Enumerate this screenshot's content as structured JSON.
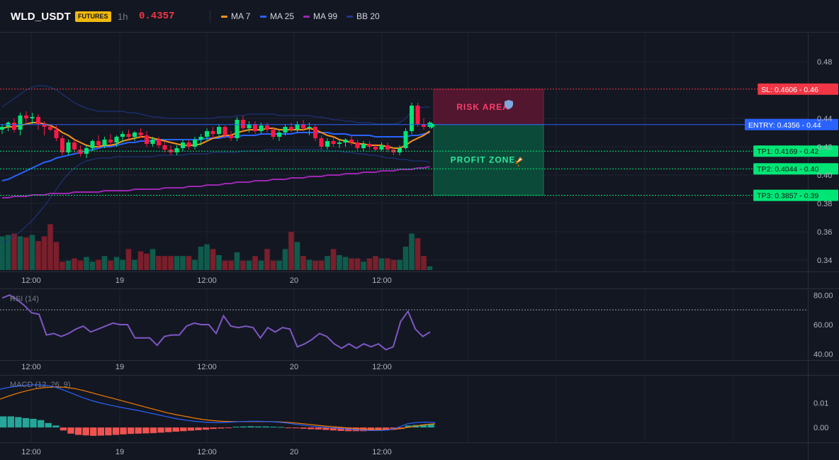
{
  "header": {
    "symbol": "WLD_USDT",
    "badge": "FUTURES",
    "timeframe": "1h",
    "price": "0.4357",
    "legend": [
      {
        "label": "MA 7",
        "color": "#f7931a"
      },
      {
        "label": "MA 25",
        "color": "#2962ff"
      },
      {
        "label": "MA 99",
        "color": "#9c27b0"
      },
      {
        "label": "BB 20",
        "color": "#1e3a8a"
      }
    ]
  },
  "colors": {
    "up": "#089981",
    "down": "#f23645",
    "candle_up": "#00e676",
    "candle_down": "#ff1744",
    "ma7": "#f7931a",
    "ma25": "#2962ff",
    "ma99": "#9c27b0",
    "bb": "#1e3a8a",
    "rsi": "#7e57c2",
    "macd": "#2962ff",
    "signal": "#f57c00"
  },
  "chart_data": [
    {
      "type": "candlestick",
      "name": "price",
      "ylim": [
        0.332,
        0.5
      ],
      "y_ticks": [
        "0.48",
        "0.44",
        "0.42",
        "0.40",
        "0.38",
        "0.36",
        "0.34"
      ],
      "x_ticks": [
        "12:00",
        "19",
        "12:00",
        "20",
        "12:00"
      ],
      "candles": [
        [
          0.432,
          0.436,
          0.429,
          0.434
        ],
        [
          0.434,
          0.438,
          0.431,
          0.437
        ],
        [
          0.437,
          0.44,
          0.43,
          0.432
        ],
        [
          0.432,
          0.444,
          0.428,
          0.442
        ],
        [
          0.442,
          0.445,
          0.437,
          0.44
        ],
        [
          0.44,
          0.444,
          0.436,
          0.441
        ],
        [
          0.441,
          0.443,
          0.432,
          0.436
        ],
        [
          0.436,
          0.438,
          0.428,
          0.434
        ],
        [
          0.434,
          0.436,
          0.431,
          0.432
        ],
        [
          0.432,
          0.435,
          0.424,
          0.426
        ],
        [
          0.426,
          0.428,
          0.414,
          0.416
        ],
        [
          0.416,
          0.425,
          0.414,
          0.423
        ],
        [
          0.423,
          0.425,
          0.416,
          0.418
        ],
        [
          0.418,
          0.421,
          0.413,
          0.415
        ],
        [
          0.415,
          0.421,
          0.412,
          0.419
        ],
        [
          0.419,
          0.425,
          0.417,
          0.424
        ],
        [
          0.424,
          0.428,
          0.419,
          0.421
        ],
        [
          0.421,
          0.427,
          0.419,
          0.425
        ],
        [
          0.425,
          0.429,
          0.421,
          0.423
        ],
        [
          0.423,
          0.428,
          0.42,
          0.427
        ],
        [
          0.427,
          0.431,
          0.423,
          0.429
        ],
        [
          0.429,
          0.432,
          0.425,
          0.427
        ],
        [
          0.427,
          0.431,
          0.424,
          0.43
        ],
        [
          0.43,
          0.433,
          0.426,
          0.428
        ],
        [
          0.428,
          0.431,
          0.42,
          0.422
        ],
        [
          0.422,
          0.427,
          0.42,
          0.425
        ],
        [
          0.425,
          0.427,
          0.419,
          0.421
        ],
        [
          0.421,
          0.423,
          0.416,
          0.418
        ],
        [
          0.418,
          0.421,
          0.414,
          0.416
        ],
        [
          0.416,
          0.421,
          0.414,
          0.419
        ],
        [
          0.419,
          0.425,
          0.417,
          0.423
        ],
        [
          0.423,
          0.425,
          0.418,
          0.42
        ],
        [
          0.42,
          0.427,
          0.418,
          0.425
        ],
        [
          0.425,
          0.429,
          0.421,
          0.427
        ],
        [
          0.427,
          0.433,
          0.424,
          0.431
        ],
        [
          0.431,
          0.434,
          0.426,
          0.429
        ],
        [
          0.429,
          0.436,
          0.427,
          0.434
        ],
        [
          0.434,
          0.435,
          0.426,
          0.428
        ],
        [
          0.428,
          0.431,
          0.424,
          0.426
        ],
        [
          0.426,
          0.441,
          0.424,
          0.439
        ],
        [
          0.439,
          0.442,
          0.431,
          0.433
        ],
        [
          0.433,
          0.438,
          0.43,
          0.436
        ],
        [
          0.436,
          0.438,
          0.429,
          0.431
        ],
        [
          0.431,
          0.437,
          0.429,
          0.435
        ],
        [
          0.435,
          0.437,
          0.43,
          0.432
        ],
        [
          0.432,
          0.434,
          0.425,
          0.427
        ],
        [
          0.427,
          0.432,
          0.424,
          0.43
        ],
        [
          0.43,
          0.436,
          0.428,
          0.434
        ],
        [
          0.434,
          0.437,
          0.43,
          0.432
        ],
        [
          0.432,
          0.438,
          0.43,
          0.436
        ],
        [
          0.436,
          0.439,
          0.431,
          0.433
        ],
        [
          0.433,
          0.437,
          0.428,
          0.434
        ],
        [
          0.434,
          0.436,
          0.424,
          0.426
        ],
        [
          0.426,
          0.428,
          0.418,
          0.42
        ],
        [
          0.42,
          0.426,
          0.418,
          0.424
        ],
        [
          0.424,
          0.427,
          0.42,
          0.422
        ],
        [
          0.422,
          0.425,
          0.419,
          0.423
        ],
        [
          0.423,
          0.426,
          0.42,
          0.425
        ],
        [
          0.425,
          0.428,
          0.421,
          0.423
        ],
        [
          0.423,
          0.425,
          0.417,
          0.419
        ],
        [
          0.419,
          0.424,
          0.417,
          0.422
        ],
        [
          0.422,
          0.424,
          0.418,
          0.42
        ],
        [
          0.42,
          0.422,
          0.417,
          0.418
        ],
        [
          0.418,
          0.423,
          0.417,
          0.421
        ],
        [
          0.421,
          0.423,
          0.416,
          0.418
        ],
        [
          0.418,
          0.42,
          0.414,
          0.416
        ],
        [
          0.416,
          0.421,
          0.414,
          0.419
        ],
        [
          0.419,
          0.433,
          0.418,
          0.431
        ],
        [
          0.431,
          0.451,
          0.429,
          0.449
        ],
        [
          0.449,
          0.451,
          0.434,
          0.436
        ],
        [
          0.436,
          0.44,
          0.432,
          0.434
        ],
        [
          0.434,
          0.438,
          0.433,
          0.437
        ]
      ],
      "ma7": [
        0.433,
        0.434,
        0.434,
        0.435,
        0.436,
        0.437,
        0.437,
        0.436,
        0.435,
        0.433,
        0.43,
        0.428,
        0.425,
        0.423,
        0.421,
        0.42,
        0.42,
        0.421,
        0.421,
        0.422,
        0.424,
        0.425,
        0.426,
        0.427,
        0.427,
        0.426,
        0.425,
        0.424,
        0.423,
        0.422,
        0.421,
        0.421,
        0.421,
        0.422,
        0.424,
        0.426,
        0.427,
        0.428,
        0.428,
        0.43,
        0.431,
        0.432,
        0.432,
        0.432,
        0.433,
        0.433,
        0.432,
        0.432,
        0.432,
        0.432,
        0.432,
        0.433,
        0.432,
        0.43,
        0.428,
        0.427,
        0.425,
        0.424,
        0.423,
        0.422,
        0.422,
        0.421,
        0.421,
        0.421,
        0.42,
        0.419,
        0.419,
        0.421,
        0.424,
        0.426,
        0.428,
        0.431
      ],
      "ma25": [
        0.396,
        0.397,
        0.399,
        0.401,
        0.403,
        0.405,
        0.407,
        0.409,
        0.41,
        0.412,
        0.413,
        0.414,
        0.415,
        0.416,
        0.417,
        0.418,
        0.419,
        0.42,
        0.42,
        0.421,
        0.422,
        0.423,
        0.423,
        0.424,
        0.424,
        0.424,
        0.425,
        0.425,
        0.425,
        0.425,
        0.425,
        0.425,
        0.425,
        0.425,
        0.426,
        0.426,
        0.426,
        0.427,
        0.427,
        0.427,
        0.428,
        0.428,
        0.428,
        0.429,
        0.429,
        0.429,
        0.429,
        0.429,
        0.429,
        0.43,
        0.43,
        0.43,
        0.43,
        0.43,
        0.43,
        0.429,
        0.429,
        0.429,
        0.428,
        0.428,
        0.428,
        0.428,
        0.427,
        0.427,
        0.427,
        0.427,
        0.427,
        0.427,
        0.428,
        0.428,
        0.429,
        0.43
      ],
      "ma99": [
        0.384,
        0.384,
        0.385,
        0.385,
        0.385,
        0.386,
        0.386,
        0.386,
        0.387,
        0.387,
        0.387,
        0.387,
        0.388,
        0.388,
        0.388,
        0.388,
        0.388,
        0.389,
        0.389,
        0.389,
        0.389,
        0.389,
        0.39,
        0.39,
        0.39,
        0.39,
        0.39,
        0.391,
        0.391,
        0.391,
        0.391,
        0.392,
        0.392,
        0.392,
        0.393,
        0.393,
        0.393,
        0.394,
        0.394,
        0.395,
        0.395,
        0.395,
        0.396,
        0.396,
        0.396,
        0.397,
        0.397,
        0.397,
        0.398,
        0.398,
        0.398,
        0.399,
        0.399,
        0.399,
        0.4,
        0.4,
        0.4,
        0.401,
        0.401,
        0.401,
        0.402,
        0.402,
        0.402,
        0.403,
        0.403,
        0.403,
        0.404,
        0.404,
        0.404,
        0.405,
        0.405,
        0.406
      ],
      "bb_upper": [
        0.448,
        0.451,
        0.454,
        0.457,
        0.46,
        0.462,
        0.463,
        0.463,
        0.462,
        0.46,
        0.457,
        0.454,
        0.451,
        0.449,
        0.447,
        0.446,
        0.445,
        0.445,
        0.445,
        0.445,
        0.445,
        0.444,
        0.444,
        0.443,
        0.442,
        0.441,
        0.441,
        0.44,
        0.44,
        0.44,
        0.44,
        0.44,
        0.44,
        0.44,
        0.44,
        0.44,
        0.441,
        0.441,
        0.441,
        0.442,
        0.442,
        0.443,
        0.443,
        0.443,
        0.443,
        0.443,
        0.442,
        0.442,
        0.442,
        0.442,
        0.442,
        0.442,
        0.441,
        0.441,
        0.44,
        0.439,
        0.439,
        0.438,
        0.438,
        0.437,
        0.437,
        0.437,
        0.436,
        0.436,
        0.436,
        0.436,
        0.437,
        0.44,
        0.445,
        0.447,
        0.448,
        0.448
      ],
      "bb_lower": [
        0.352,
        0.354,
        0.357,
        0.36,
        0.364,
        0.368,
        0.373,
        0.378,
        0.384,
        0.39,
        0.396,
        0.401,
        0.405,
        0.408,
        0.41,
        0.411,
        0.412,
        0.412,
        0.412,
        0.413,
        0.413,
        0.413,
        0.413,
        0.413,
        0.413,
        0.413,
        0.414,
        0.414,
        0.414,
        0.414,
        0.414,
        0.415,
        0.415,
        0.415,
        0.415,
        0.416,
        0.416,
        0.416,
        0.416,
        0.416,
        0.417,
        0.417,
        0.417,
        0.417,
        0.418,
        0.418,
        0.418,
        0.418,
        0.418,
        0.418,
        0.418,
        0.418,
        0.418,
        0.418,
        0.417,
        0.417,
        0.417,
        0.416,
        0.416,
        0.415,
        0.415,
        0.414,
        0.414,
        0.413,
        0.412,
        0.412,
        0.411,
        0.411,
        0.41,
        0.41,
        0.41,
        0.409
      ],
      "volume": [
        0.72,
        0.75,
        0.78,
        0.72,
        0.7,
        0.75,
        0.62,
        0.72,
        0.98,
        0.6,
        0.18,
        0.2,
        0.25,
        0.2,
        0.28,
        0.18,
        0.22,
        0.3,
        0.2,
        0.28,
        0.22,
        0.45,
        0.22,
        0.4,
        0.35,
        0.45,
        0.3,
        0.3,
        0.3,
        0.3,
        0.3,
        0.3,
        0.22,
        0.5,
        0.55,
        0.45,
        0.32,
        0.2,
        0.2,
        0.38,
        0.2,
        0.2,
        0.3,
        0.2,
        0.45,
        0.2,
        0.2,
        0.45,
        0.82,
        0.6,
        0.3,
        0.22,
        0.2,
        0.2,
        0.3,
        0.45,
        0.32,
        0.28,
        0.25,
        0.25,
        0.18,
        0.25,
        0.3,
        0.25,
        0.25,
        0.22,
        0.22,
        0.5,
        0.78,
        0.68,
        0.3,
        0.08
      ],
      "levels": [
        {
          "label": "SL: 0.4606",
          "value": "0.46",
          "price": 0.4606,
          "color": "#f23645",
          "style": "dotted"
        },
        {
          "label": "ENTRY: 0.4356",
          "value": "0.44",
          "price": 0.4356,
          "color": "#2962ff",
          "style": "solid"
        },
        {
          "label": "TP1: 0.4169",
          "value": "0.42",
          "price": 0.4169,
          "color": "#00e676",
          "style": "dotted"
        },
        {
          "label": "TP2: 0.4044",
          "value": "0.40",
          "price": 0.4044,
          "color": "#00e676",
          "style": "dotted"
        },
        {
          "label": "TP3: 0.3857",
          "value": "0.39",
          "price": 0.3857,
          "color": "#00e676",
          "style": "dotted"
        }
      ],
      "zones": {
        "risk": "RISK AREA",
        "profit": "PROFIT ZONE"
      }
    },
    {
      "type": "line",
      "name": "RSI (14)",
      "ylim": [
        36,
        84
      ],
      "y_ticks": [
        "80.00",
        "60.00",
        "40.00"
      ],
      "reference": 70,
      "values": [
        78,
        80,
        77,
        73,
        68,
        67,
        53,
        54,
        52,
        54,
        57,
        59,
        55,
        57,
        59,
        61,
        60,
        60,
        51,
        51,
        51,
        46,
        52,
        53,
        53,
        59,
        61,
        60,
        60,
        54,
        66,
        59,
        58,
        59,
        58,
        51,
        58,
        55,
        58,
        57,
        45,
        47,
        50,
        54,
        52,
        47,
        44,
        47,
        44,
        47,
        45,
        47,
        43,
        45,
        62,
        69,
        57,
        52,
        55
      ],
      "x_ticks": [
        "12:00",
        "19",
        "12:00",
        "20",
        "12:00"
      ]
    },
    {
      "type": "bar+line",
      "name": "MACD (12, 26, 9)",
      "ylim": [
        -0.006,
        0.021
      ],
      "y_ticks": [
        "0.01",
        "0.00"
      ],
      "x_ticks": [
        "12:00",
        "19",
        "12:00",
        "20",
        "12:00"
      ],
      "macd": [
        0.0155,
        0.0163,
        0.0168,
        0.0172,
        0.0173,
        0.0171,
        0.0163,
        0.015,
        0.0135,
        0.012,
        0.0108,
        0.0098,
        0.009,
        0.0082,
        0.0075,
        0.0068,
        0.006,
        0.0052,
        0.0044,
        0.0036,
        0.003,
        0.0025,
        0.0022,
        0.002,
        0.002,
        0.0022,
        0.0024,
        0.0025,
        0.0025,
        0.0024,
        0.0022,
        0.0018,
        0.0013,
        0.0008,
        0.0004,
        0.0001,
        -0.0002,
        -0.0005,
        -0.0008,
        -0.001,
        -0.0012,
        -0.0012,
        -0.001,
        0.0,
        0.0015,
        0.002,
        0.0022,
        0.002
      ],
      "signal": [
        0.0115,
        0.0128,
        0.014,
        0.015,
        0.0158,
        0.0162,
        0.0164,
        0.0163,
        0.0158,
        0.015,
        0.014,
        0.013,
        0.012,
        0.011,
        0.01,
        0.009,
        0.008,
        0.007,
        0.006,
        0.0052,
        0.0045,
        0.0038,
        0.0032,
        0.0028,
        0.0025,
        0.0024,
        0.0024,
        0.0024,
        0.0024,
        0.0024,
        0.0023,
        0.0021,
        0.0018,
        0.0014,
        0.001,
        0.0006,
        0.0003,
        0.0,
        -0.0003,
        -0.0006,
        -0.0008,
        -0.0009,
        -0.0009,
        -0.0006,
        0.0,
        0.0006,
        0.0012,
        0.0015
      ],
      "histogram": [
        0.0045,
        0.0045,
        0.0042,
        0.0038,
        0.0035,
        0.003,
        0.0018,
        0.0008,
        -0.0012,
        -0.0025,
        -0.003,
        -0.0032,
        -0.0034,
        -0.0033,
        -0.0032,
        -0.003,
        -0.0028,
        -0.0026,
        -0.0025,
        -0.0024,
        -0.0023,
        -0.0021,
        -0.0019,
        -0.0017,
        -0.0015,
        -0.0013,
        -0.0011,
        -0.0009,
        -0.0006,
        -0.0004,
        -0.0002,
        0.0003,
        0.0004,
        0.0005,
        0.0004,
        0.0004,
        0.0003,
        0.0002,
        -0.0002,
        -0.0003,
        -0.0005,
        -0.0007,
        -0.0008,
        -0.001,
        -0.0012,
        -0.0014,
        -0.0015,
        -0.0015,
        -0.0015,
        -0.0014,
        -0.0013,
        -0.0011,
        -0.0009,
        -0.0006,
        0.0008,
        0.001,
        0.0012,
        0.0014
      ]
    }
  ]
}
